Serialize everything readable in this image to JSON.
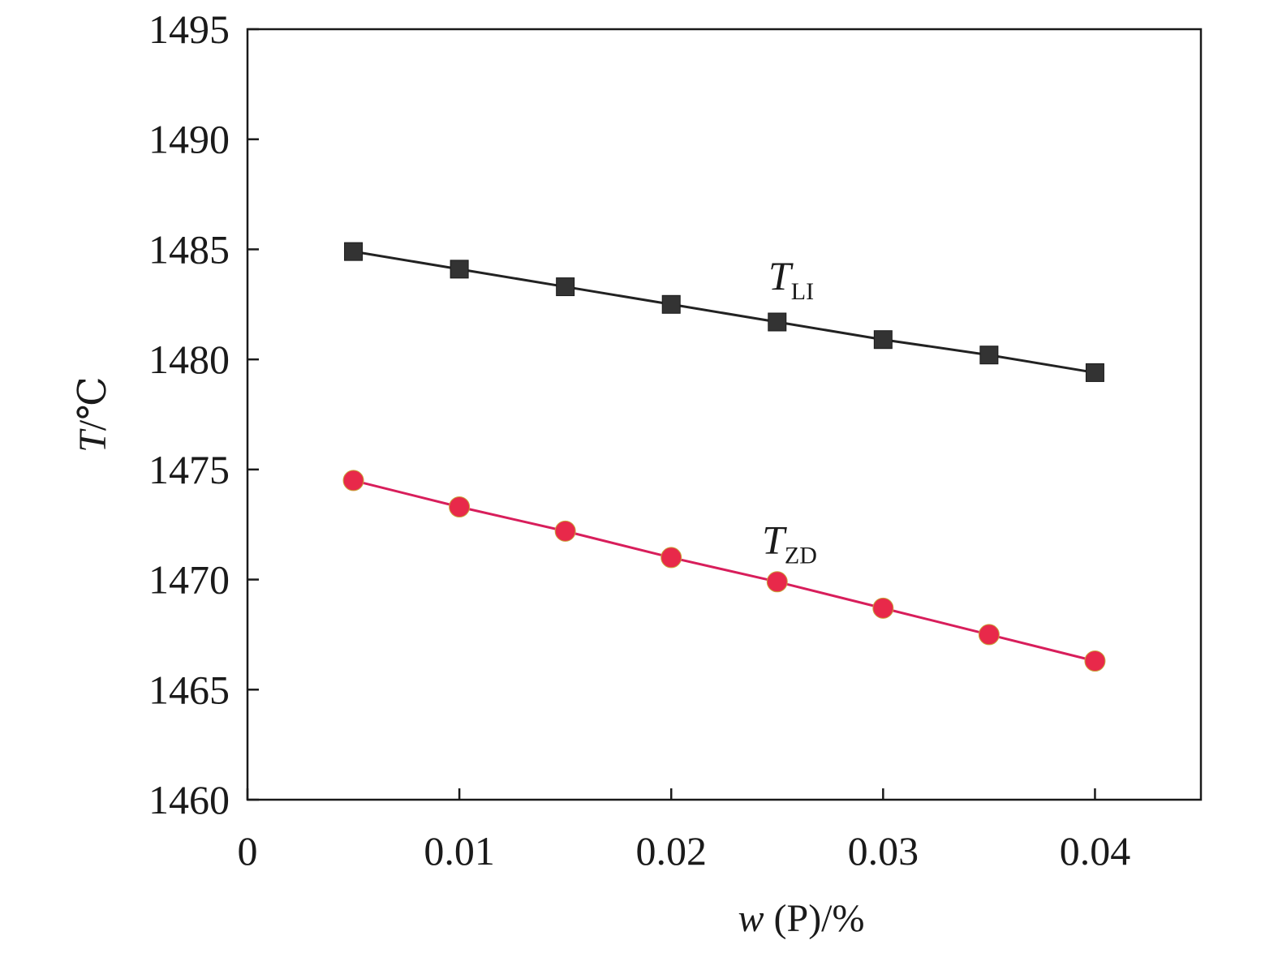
{
  "chart_data": {
    "type": "line",
    "xlabel": {
      "var": "w",
      "rest": " (P)/%"
    },
    "ylabel": {
      "var": "T",
      "rest": "/℃"
    },
    "xlim": [
      0,
      0.045
    ],
    "ylim": [
      1460,
      1495
    ],
    "xticks": [
      0,
      0.01,
      0.02,
      0.03,
      0.04
    ],
    "xtick_labels": [
      "0",
      "0.01",
      "0.02",
      "0.03",
      "0.04"
    ],
    "yticks": [
      1460,
      1465,
      1470,
      1475,
      1480,
      1485,
      1490,
      1495
    ],
    "ytick_labels": [
      "1460",
      "1465",
      "1470",
      "1475",
      "1480",
      "1485",
      "1490",
      "1495"
    ],
    "grid": false,
    "x": [
      0.005,
      0.01,
      0.015,
      0.02,
      0.025,
      0.03,
      0.035,
      0.04
    ],
    "series": [
      {
        "name": "TLI",
        "label_main": "T",
        "label_sub": "LI",
        "marker": "square",
        "color": "#333333",
        "line_color": "#222222",
        "values": [
          1484.9,
          1484.1,
          1483.3,
          1482.5,
          1481.7,
          1480.9,
          1480.2,
          1479.4
        ]
      },
      {
        "name": "TZD",
        "label_main": "T",
        "label_sub": "ZD",
        "marker": "circle",
        "color": "#e8294a",
        "line_color": "#d81e5b",
        "values": [
          1474.5,
          1473.3,
          1472.2,
          1471.0,
          1469.9,
          1468.7,
          1467.5,
          1466.3
        ]
      }
    ]
  }
}
